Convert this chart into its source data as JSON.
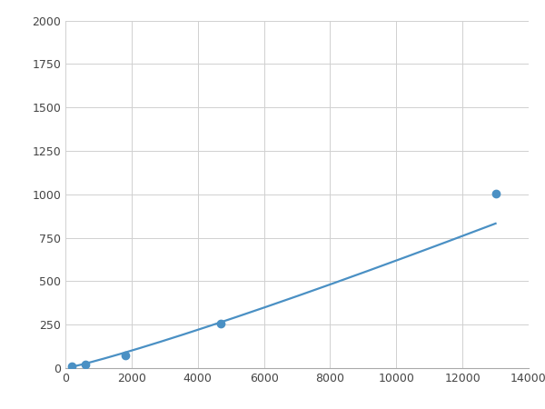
{
  "x_points": [
    200,
    600,
    1800,
    4700,
    13000
  ],
  "y_points": [
    10,
    20,
    75,
    255,
    1005
  ],
  "line_color": "#4a90c4",
  "marker_color": "#4a90c4",
  "marker_size": 6,
  "line_width": 1.6,
  "xlim": [
    0,
    14000
  ],
  "ylim": [
    0,
    2000
  ],
  "xticks": [
    0,
    2000,
    4000,
    6000,
    8000,
    10000,
    12000,
    14000
  ],
  "yticks": [
    0,
    250,
    500,
    750,
    1000,
    1250,
    1500,
    1750,
    2000
  ],
  "grid_color": "#d0d0d0",
  "background_color": "#ffffff",
  "figure_bg": "#ffffff"
}
